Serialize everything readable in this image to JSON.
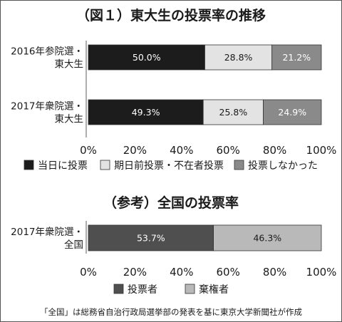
{
  "chart_data": [
    {
      "type": "bar",
      "orientation": "horizontal",
      "stacked": true,
      "title": "（図１）東大生の投票率の推移",
      "categories": [
        [
          "2016年参院選・",
          "東大生"
        ],
        [
          "2017年衆院選・",
          "東大生"
        ]
      ],
      "series": [
        {
          "name": "当日に投票",
          "values": [
            50.0,
            49.3
          ],
          "labels": [
            "50.0%",
            "49.3%"
          ],
          "color": "#1c1c1c",
          "label_color": "#ffffff"
        },
        {
          "name": "期日前投票・不在者投票",
          "values": [
            28.8,
            25.8
          ],
          "labels": [
            "28.8%",
            "25.8%"
          ],
          "color": "#e3e3e3",
          "label_color": "#1a1a1a"
        },
        {
          "name": "投票しなかった",
          "values": [
            21.2,
            24.9
          ],
          "labels": [
            "21.2%",
            "24.9%"
          ],
          "color": "#8a8a8a",
          "label_color": "#ffffff"
        }
      ],
      "xlim": [
        0,
        100
      ],
      "xticks": [
        "0%",
        "20%",
        "40%",
        "60%",
        "80%",
        "100%"
      ],
      "legend_position": "bottom"
    },
    {
      "type": "bar",
      "orientation": "horizontal",
      "stacked": true,
      "title": "（参考）全国の投票率",
      "categories": [
        [
          "2017年衆院選・",
          "全国"
        ]
      ],
      "series": [
        {
          "name": "投票者",
          "values": [
            53.7
          ],
          "labels": [
            "53.7%"
          ],
          "color": "#4f4f4f",
          "label_color": "#ffffff"
        },
        {
          "name": "棄権者",
          "values": [
            46.3
          ],
          "labels": [
            "46.3%"
          ],
          "color": "#b9b9b9",
          "label_color": "#1a1a1a"
        }
      ],
      "xlim": [
        0,
        100
      ],
      "xticks": [
        "0%",
        "20%",
        "40%",
        "60%",
        "80%",
        "100%"
      ],
      "legend_position": "bottom"
    }
  ],
  "footnote": "「全国」は総務省自治行政局選挙部の発表を基に東京大学新聞社が作成"
}
